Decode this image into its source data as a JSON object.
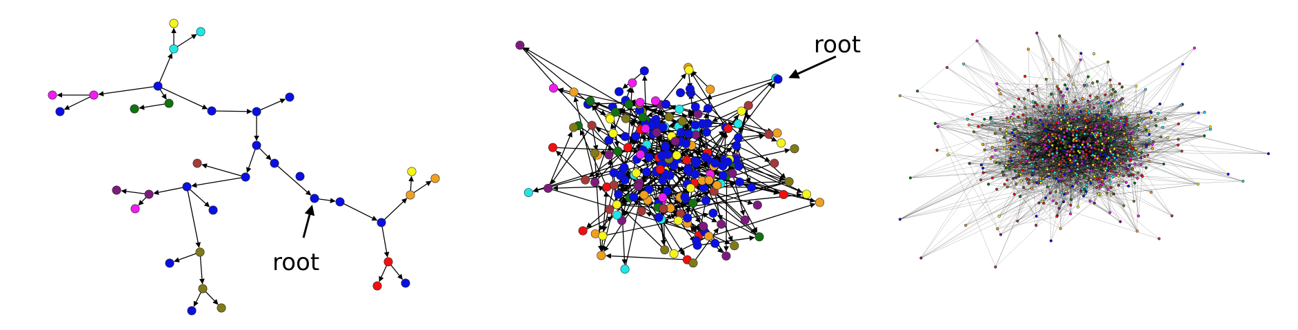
{
  "annotations": {
    "panel1_root_label": "root",
    "panel2_root_label": "root"
  },
  "colors": {
    "blue": "#0a10e0",
    "yellow": "#f5f51a",
    "cyan": "#22e6e6",
    "magenta": "#f01cf0",
    "green": "#127212",
    "brown": "#a43a3a",
    "purple": "#7e1a7e",
    "olive": "#807a18",
    "orange": "#f0a020",
    "red": "#f01010"
  }
}
